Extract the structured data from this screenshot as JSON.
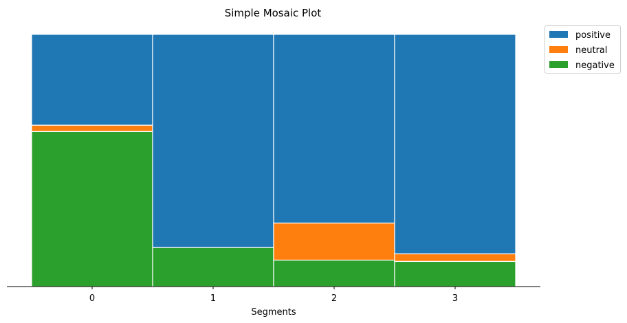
{
  "chart_data": {
    "type": "mosaic",
    "title": "Simple Mosaic Plot",
    "xlabel": "Segments",
    "ylabel": "",
    "categories": [
      "0",
      "1",
      "2",
      "3"
    ],
    "series": [
      {
        "name": "negative",
        "color": "#2ca02c",
        "values": [
          0.615,
          0.155,
          0.105,
          0.1
        ]
      },
      {
        "name": "neutral",
        "color": "#ff7f0e",
        "values": [
          0.025,
          0.0,
          0.147,
          0.03
        ]
      },
      {
        "name": "positive",
        "color": "#1f77b4",
        "values": [
          0.36,
          0.845,
          0.748,
          0.87
        ]
      }
    ],
    "legend": {
      "placement": "outside-top-right",
      "order": [
        "positive",
        "neutral",
        "negative"
      ]
    },
    "ylim": [
      0,
      1
    ],
    "grid": false
  }
}
